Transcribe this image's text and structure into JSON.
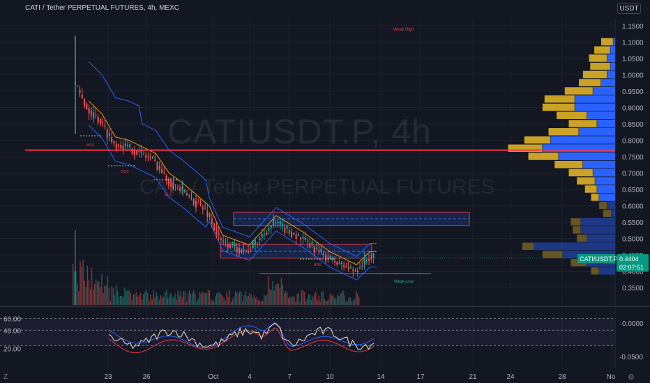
{
  "header": {
    "title": "CATI / Tether PERPETUAL FUTURES, 4h, MEXC"
  },
  "currency_button": "USDT",
  "watermark": {
    "symbol": "CATIUSDT.P, 4h",
    "name": "CATI / Tether PERPETUAL FUTURES"
  },
  "price_axis_labels": [
    "1.1500",
    "1.1000",
    "1.0500",
    "1.0000",
    "0.9500",
    "0.9000",
    "0.8500",
    "0.8000",
    "0.7500",
    "0.7000",
    "0.6500",
    "0.6000",
    "0.5500",
    "0.5000",
    "0.4500",
    "0.4000",
    "0.3500"
  ],
  "indicator_axis_left": [
    "60.00",
    "40.00",
    "20.00"
  ],
  "indicator_axis_right": [
    "0.0000",
    "-0.0500"
  ],
  "time_axis_labels": [
    "23",
    "26",
    "Oct",
    "4",
    "7",
    "10",
    "14",
    "17",
    "21",
    "24",
    "28",
    "No"
  ],
  "last_price_badge": {
    "symbol": "CATI/USDT.P",
    "price": "0.4404",
    "countdown": "02:07:51"
  },
  "annotations": {
    "weak_high": "Weak High",
    "weak_low": "Weak Low",
    "bos": "BOS"
  },
  "bottom_left_icon": "Z",
  "colors": {
    "bg": "#131722",
    "up": "#26a69a",
    "down": "#ef5350",
    "red_line": "#f23645",
    "vp_gold": "#c9a227",
    "vp_blue": "#2962ff",
    "badge": "#089981"
  },
  "chart_data": {
    "type": "candlestick",
    "title": "CATI / Tether PERPETUAL FUTURES, 4h, MEXC",
    "ylim": [
      0.32,
      1.17
    ],
    "x_ticks": [
      "23",
      "26",
      "Oct",
      "4",
      "7",
      "10",
      "14",
      "17",
      "21",
      "24",
      "28",
      "No"
    ],
    "price_path": [
      {
        "x": "Sep 20",
        "close": 0.98
      },
      {
        "x": "Sep 21",
        "close": 0.9
      },
      {
        "x": "Sep 22",
        "close": 0.86
      },
      {
        "x": "Sep 23",
        "close": 0.79
      },
      {
        "x": "Sep 24",
        "close": 0.78
      },
      {
        "x": "Sep 26",
        "close": 0.74
      },
      {
        "x": "Sep 27",
        "close": 0.68
      },
      {
        "x": "Sep 28",
        "close": 0.65
      },
      {
        "x": "Sep 30",
        "close": 0.58
      },
      {
        "x": "Oct 1",
        "close": 0.49
      },
      {
        "x": "Oct 3",
        "close": 0.46
      },
      {
        "x": "Oct 5",
        "close": 0.55
      },
      {
        "x": "Oct 7",
        "close": 0.5
      },
      {
        "x": "Oct 9",
        "close": 0.44
      },
      {
        "x": "Oct 11",
        "close": 0.4
      },
      {
        "x": "Oct 12",
        "close": 0.44
      }
    ],
    "horizontal_lines": [
      {
        "price": 0.77,
        "color": "#f23645"
      }
    ],
    "zones": [
      {
        "from": 0.54,
        "to": 0.58
      },
      {
        "from": 0.44,
        "to": 0.482
      }
    ],
    "last_price": 0.4404,
    "volume_profile_levels": [
      {
        "price": 1.1,
        "up": 0.3,
        "down": 0.05
      },
      {
        "price": 1.075,
        "up": 0.4,
        "down": 0.12
      },
      {
        "price": 1.05,
        "up": 0.45,
        "down": 0.2
      },
      {
        "price": 1.025,
        "up": 0.5,
        "down": 0.12
      },
      {
        "price": 1.0,
        "up": 0.6,
        "down": 0.2
      },
      {
        "price": 0.975,
        "up": 0.55,
        "down": 0.35
      },
      {
        "price": 0.95,
        "up": 0.7,
        "down": 0.55
      },
      {
        "price": 0.925,
        "up": 0.75,
        "down": 1.0
      },
      {
        "price": 0.9,
        "up": 0.8,
        "down": 1.0
      },
      {
        "price": 0.875,
        "up": 0.75,
        "down": 0.7
      },
      {
        "price": 0.85,
        "up": 0.7,
        "down": 0.45
      },
      {
        "price": 0.825,
        "up": 0.75,
        "down": 0.9
      },
      {
        "price": 0.8,
        "up": 0.65,
        "down": 1.6
      },
      {
        "price": 0.775,
        "up": 0.85,
        "down": 1.8
      },
      {
        "price": 0.75,
        "up": 0.75,
        "down": 1.4
      },
      {
        "price": 0.725,
        "up": 0.7,
        "down": 0.8
      },
      {
        "price": 0.7,
        "up": 0.6,
        "down": 0.55
      },
      {
        "price": 0.675,
        "up": 0.45,
        "down": 0.5
      },
      {
        "price": 0.65,
        "up": 0.3,
        "down": 0.45
      },
      {
        "price": 0.625,
        "up": 0.2,
        "down": 0.4
      },
      {
        "price": 0.6,
        "up": 0.2,
        "down": 0.2
      },
      {
        "price": 0.575,
        "up": 0.2,
        "down": 0.1
      },
      {
        "price": 0.55,
        "up": 0.25,
        "down": 0.85
      },
      {
        "price": 0.525,
        "up": 0.2,
        "down": 0.85
      },
      {
        "price": 0.5,
        "up": 0.25,
        "down": 0.7
      },
      {
        "price": 0.475,
        "up": 0.3,
        "down": 2.0
      },
      {
        "price": 0.45,
        "up": 0.5,
        "down": 1.3
      },
      {
        "price": 0.425,
        "up": 0.4,
        "down": 0.7
      },
      {
        "price": 0.4,
        "up": 0.2,
        "down": 0.4
      }
    ],
    "indicator": {
      "ylim": [
        10,
        70
      ],
      "levels": [
        62,
        49,
        32
      ],
      "last": 48
    }
  }
}
